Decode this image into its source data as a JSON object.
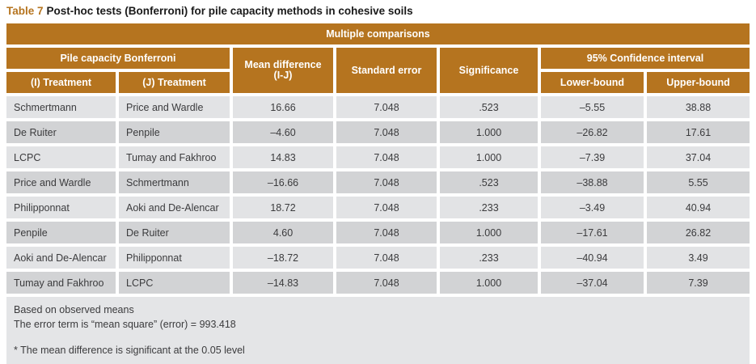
{
  "title": {
    "label": "Table 7",
    "text": "Post-hoc tests (Bonferroni) for pile capacity methods in cohesive soils"
  },
  "table": {
    "banner": "Multiple comparisons",
    "group_header": "Pile capacity Bonferroni",
    "columns": {
      "i_treatment": "(I) Treatment",
      "j_treatment": "(J) Treatment",
      "mean_difference_line1": "Mean difference",
      "mean_difference_line2": "(I-J)",
      "standard_error": "Standard error",
      "significance": "Significance",
      "confidence_interval": "95% Confidence interval",
      "lower_bound": "Lower-bound",
      "upper_bound": "Upper-bound"
    },
    "rows": [
      {
        "i": "Schmertmann",
        "j": "Price and Wardle",
        "mean_diff": "16.66",
        "std_error": "7.048",
        "sig": ".523",
        "lower": "–5.55",
        "upper": "38.88"
      },
      {
        "i": "De Ruiter",
        "j": "Penpile",
        "mean_diff": "–4.60",
        "std_error": "7.048",
        "sig": "1.000",
        "lower": "–26.82",
        "upper": "17.61"
      },
      {
        "i": "LCPC",
        "j": "Tumay and Fakhroo",
        "mean_diff": "14.83",
        "std_error": "7.048",
        "sig": "1.000",
        "lower": "–7.39",
        "upper": "37.04"
      },
      {
        "i": "Price and Wardle",
        "j": "Schmertmann",
        "mean_diff": "–16.66",
        "std_error": "7.048",
        "sig": ".523",
        "lower": "–38.88",
        "upper": "5.55"
      },
      {
        "i": "Philipponnat",
        "j": "Aoki and De-Alencar",
        "mean_diff": "18.72",
        "std_error": "7.048",
        "sig": ".233",
        "lower": "–3.49",
        "upper": "40.94"
      },
      {
        "i": "Penpile",
        "j": "De Ruiter",
        "mean_diff": "4.60",
        "std_error": "7.048",
        "sig": "1.000",
        "lower": "–17.61",
        "upper": "26.82"
      },
      {
        "i": "Aoki and De-Alencar",
        "j": "Philipponnat",
        "mean_diff": "–18.72",
        "std_error": "7.048",
        "sig": ".233",
        "lower": "–40.94",
        "upper": "3.49"
      },
      {
        "i": "Tumay and Fakhroo",
        "j": "LCPC",
        "mean_diff": "–14.83",
        "std_error": "7.048",
        "sig": "1.000",
        "lower": "–37.04",
        "upper": "7.39"
      }
    ],
    "footnotes": {
      "note1": "Based on observed means",
      "note2": "The error term is “mean square” (error) = 993.418",
      "note3": "* The mean difference is significant at the 0.05 level"
    }
  },
  "colors": {
    "accent": "#B5741F",
    "row_light": "#E2E3E5",
    "row_dark": "#D2D3D5",
    "footer_bg": "#E4E5E7",
    "text_dark": "#3B3B3D"
  }
}
